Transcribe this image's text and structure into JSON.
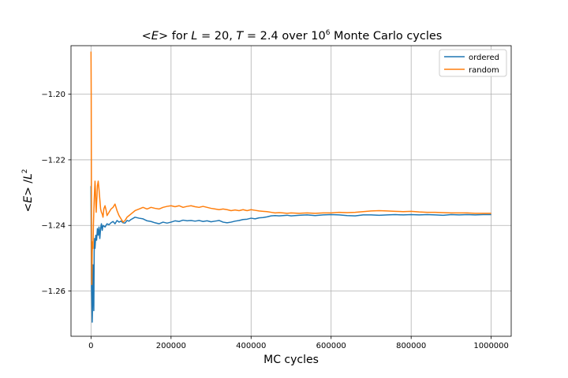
{
  "chart_data": {
    "type": "line",
    "title": {
      "prefix": "<",
      "var_e": "E",
      "mid": ">  for ",
      "var_l": "L",
      "eq1": " = 20, ",
      "var_t": "T",
      "eq2": " = 2.4 over 10",
      "exp": "6",
      "suffix": " Monte Carlo cycles"
    },
    "xlabel": "MC cycles",
    "ylabel": {
      "lt": "<",
      "var_e": "E",
      "gt": "> /",
      "var_l": "L",
      "exp": "2"
    },
    "xlim": [
      -50000,
      1050000
    ],
    "ylim": [
      -1.2738,
      -1.1852
    ],
    "x_ticks": [
      0,
      200000,
      400000,
      600000,
      800000,
      1000000
    ],
    "x_tick_labels": [
      "0",
      "200000",
      "400000",
      "600000",
      "800000",
      "1000000"
    ],
    "y_ticks": [
      -1.26,
      -1.24,
      -1.22,
      -1.2
    ],
    "y_tick_labels": [
      "−1.26",
      "−1.24",
      "−1.22",
      "−1.20"
    ],
    "grid": true,
    "legend_position": "top-right",
    "series": [
      {
        "name": "ordered",
        "color": "#1f77b4",
        "points": [
          [
            0,
            -1.228
          ],
          [
            1000,
            -1.256
          ],
          [
            2000,
            -1.262
          ],
          [
            3000,
            -1.2695
          ],
          [
            4000,
            -1.263
          ],
          [
            5000,
            -1.252
          ],
          [
            6000,
            -1.2605
          ],
          [
            7000,
            -1.266
          ],
          [
            8000,
            -1.248
          ],
          [
            9000,
            -1.244
          ],
          [
            10000,
            -1.247
          ],
          [
            12000,
            -1.243
          ],
          [
            14000,
            -1.2445
          ],
          [
            16000,
            -1.241
          ],
          [
            18000,
            -1.243
          ],
          [
            20000,
            -1.2405
          ],
          [
            22000,
            -1.244
          ],
          [
            24000,
            -1.241
          ],
          [
            26000,
            -1.2395
          ],
          [
            28000,
            -1.2415
          ],
          [
            30000,
            -1.24
          ],
          [
            35000,
            -1.2405
          ],
          [
            40000,
            -1.2395
          ],
          [
            45000,
            -1.2398
          ],
          [
            50000,
            -1.2392
          ],
          [
            55000,
            -1.2388
          ],
          [
            60000,
            -1.2395
          ],
          [
            65000,
            -1.2385
          ],
          [
            70000,
            -1.239
          ],
          [
            75000,
            -1.2387
          ],
          [
            80000,
            -1.2392
          ],
          [
            85000,
            -1.2393
          ],
          [
            90000,
            -1.2385
          ],
          [
            95000,
            -1.2387
          ],
          [
            100000,
            -1.2382
          ],
          [
            110000,
            -1.2375
          ],
          [
            120000,
            -1.2378
          ],
          [
            130000,
            -1.238
          ],
          [
            140000,
            -1.2386
          ],
          [
            150000,
            -1.2388
          ],
          [
            160000,
            -1.2392
          ],
          [
            170000,
            -1.2395
          ],
          [
            180000,
            -1.239
          ],
          [
            190000,
            -1.2393
          ],
          [
            200000,
            -1.239
          ],
          [
            210000,
            -1.2386
          ],
          [
            220000,
            -1.2388
          ],
          [
            230000,
            -1.2384
          ],
          [
            240000,
            -1.2386
          ],
          [
            250000,
            -1.2385
          ],
          [
            260000,
            -1.2387
          ],
          [
            270000,
            -1.2385
          ],
          [
            280000,
            -1.2388
          ],
          [
            290000,
            -1.2386
          ],
          [
            300000,
            -1.2389
          ],
          [
            310000,
            -1.2387
          ],
          [
            320000,
            -1.2385
          ],
          [
            330000,
            -1.239
          ],
          [
            340000,
            -1.2392
          ],
          [
            350000,
            -1.239
          ],
          [
            360000,
            -1.2387
          ],
          [
            370000,
            -1.2385
          ],
          [
            380000,
            -1.2382
          ],
          [
            390000,
            -1.2381
          ],
          [
            400000,
            -1.2378
          ],
          [
            410000,
            -1.238
          ],
          [
            420000,
            -1.2377
          ],
          [
            430000,
            -1.2376
          ],
          [
            440000,
            -1.2374
          ],
          [
            450000,
            -1.2371
          ],
          [
            460000,
            -1.237
          ],
          [
            470000,
            -1.2371
          ],
          [
            480000,
            -1.237
          ],
          [
            490000,
            -1.2369
          ],
          [
            500000,
            -1.2371
          ],
          [
            520000,
            -1.2369
          ],
          [
            540000,
            -1.2368
          ],
          [
            560000,
            -1.237
          ],
          [
            580000,
            -1.2368
          ],
          [
            600000,
            -1.2367
          ],
          [
            620000,
            -1.2368
          ],
          [
            640000,
            -1.237
          ],
          [
            660000,
            -1.2371
          ],
          [
            680000,
            -1.2368
          ],
          [
            700000,
            -1.2368
          ],
          [
            720000,
            -1.2369
          ],
          [
            740000,
            -1.2368
          ],
          [
            760000,
            -1.2367
          ],
          [
            780000,
            -1.2368
          ],
          [
            800000,
            -1.2367
          ],
          [
            820000,
            -1.2368
          ],
          [
            840000,
            -1.2367
          ],
          [
            860000,
            -1.2368
          ],
          [
            880000,
            -1.2369
          ],
          [
            900000,
            -1.2367
          ],
          [
            920000,
            -1.2368
          ],
          [
            940000,
            -1.2367
          ],
          [
            960000,
            -1.2368
          ],
          [
            980000,
            -1.2367
          ],
          [
            1000000,
            -1.2367
          ]
        ]
      },
      {
        "name": "random",
        "color": "#ff7f0e",
        "points": [
          [
            0,
            -1.187
          ],
          [
            500,
            -1.2
          ],
          [
            1000,
            -1.228
          ],
          [
            1500,
            -1.25
          ],
          [
            2000,
            -1.258
          ],
          [
            3000,
            -1.248
          ],
          [
            4000,
            -1.245
          ],
          [
            5000,
            -1.247
          ],
          [
            6000,
            -1.24
          ],
          [
            7000,
            -1.236
          ],
          [
            8000,
            -1.232
          ],
          [
            9000,
            -1.229
          ],
          [
            10000,
            -1.2265
          ],
          [
            11000,
            -1.229
          ],
          [
            12000,
            -1.2335
          ],
          [
            13000,
            -1.236
          ],
          [
            14000,
            -1.233
          ],
          [
            15000,
            -1.231
          ],
          [
            16000,
            -1.228
          ],
          [
            18000,
            -1.2265
          ],
          [
            20000,
            -1.229
          ],
          [
            22000,
            -1.232
          ],
          [
            24000,
            -1.235
          ],
          [
            26000,
            -1.236
          ],
          [
            28000,
            -1.2365
          ],
          [
            30000,
            -1.2375
          ],
          [
            32000,
            -1.235
          ],
          [
            35000,
            -1.234
          ],
          [
            38000,
            -1.2355
          ],
          [
            40000,
            -1.237
          ],
          [
            45000,
            -1.236
          ],
          [
            50000,
            -1.235
          ],
          [
            55000,
            -1.2345
          ],
          [
            60000,
            -1.2335
          ],
          [
            65000,
            -1.2355
          ],
          [
            70000,
            -1.237
          ],
          [
            75000,
            -1.238
          ],
          [
            80000,
            -1.239
          ],
          [
            85000,
            -1.2385
          ],
          [
            90000,
            -1.2375
          ],
          [
            95000,
            -1.237
          ],
          [
            100000,
            -1.2365
          ],
          [
            110000,
            -1.2355
          ],
          [
            120000,
            -1.235
          ],
          [
            130000,
            -1.2345
          ],
          [
            140000,
            -1.235
          ],
          [
            150000,
            -1.2345
          ],
          [
            160000,
            -1.2348
          ],
          [
            170000,
            -1.235
          ],
          [
            180000,
            -1.2345
          ],
          [
            190000,
            -1.2342
          ],
          [
            200000,
            -1.234
          ],
          [
            210000,
            -1.2343
          ],
          [
            220000,
            -1.234
          ],
          [
            230000,
            -1.2345
          ],
          [
            240000,
            -1.2342
          ],
          [
            250000,
            -1.234
          ],
          [
            260000,
            -1.2343
          ],
          [
            270000,
            -1.2345
          ],
          [
            280000,
            -1.2342
          ],
          [
            290000,
            -1.2345
          ],
          [
            300000,
            -1.2348
          ],
          [
            310000,
            -1.235
          ],
          [
            320000,
            -1.2352
          ],
          [
            330000,
            -1.235
          ],
          [
            340000,
            -1.2352
          ],
          [
            350000,
            -1.2355
          ],
          [
            360000,
            -1.2353
          ],
          [
            370000,
            -1.2355
          ],
          [
            380000,
            -1.2352
          ],
          [
            390000,
            -1.2355
          ],
          [
            400000,
            -1.2352
          ],
          [
            410000,
            -1.2354
          ],
          [
            420000,
            -1.2356
          ],
          [
            430000,
            -1.2357
          ],
          [
            440000,
            -1.2358
          ],
          [
            450000,
            -1.236
          ],
          [
            460000,
            -1.2362
          ],
          [
            470000,
            -1.2361
          ],
          [
            480000,
            -1.2362
          ],
          [
            490000,
            -1.2363
          ],
          [
            500000,
            -1.2362
          ],
          [
            520000,
            -1.2363
          ],
          [
            540000,
            -1.2362
          ],
          [
            560000,
            -1.2363
          ],
          [
            580000,
            -1.2362
          ],
          [
            600000,
            -1.2362
          ],
          [
            620000,
            -1.236
          ],
          [
            640000,
            -1.2361
          ],
          [
            660000,
            -1.236
          ],
          [
            680000,
            -1.2358
          ],
          [
            700000,
            -1.2356
          ],
          [
            720000,
            -1.2355
          ],
          [
            740000,
            -1.2356
          ],
          [
            760000,
            -1.2357
          ],
          [
            780000,
            -1.2358
          ],
          [
            800000,
            -1.2357
          ],
          [
            820000,
            -1.2359
          ],
          [
            840000,
            -1.236
          ],
          [
            860000,
            -1.236
          ],
          [
            880000,
            -1.2361
          ],
          [
            900000,
            -1.2362
          ],
          [
            920000,
            -1.2362
          ],
          [
            940000,
            -1.2362
          ],
          [
            960000,
            -1.2363
          ],
          [
            980000,
            -1.2363
          ],
          [
            1000000,
            -1.2363
          ]
        ]
      }
    ]
  }
}
